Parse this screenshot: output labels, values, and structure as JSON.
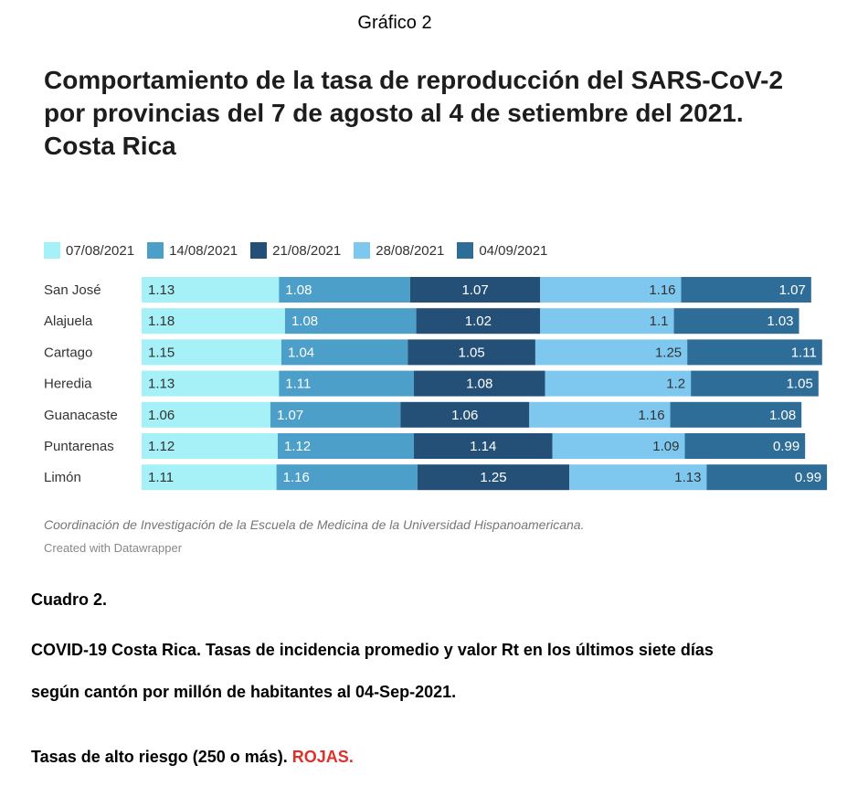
{
  "header": {
    "figure_label": "Gráfico 2",
    "title_line1": "Comportamiento de la tasa de reproducción del SARS-CoV-2",
    "title_line2": "por provincias del 7 de agosto al 4 de setiembre del 2021.",
    "title_line3": "Costa Rica"
  },
  "chart_data": {
    "type": "bar",
    "orientation": "horizontal",
    "stacked": true,
    "categories": [
      "San José",
      "Alajuela",
      "Cartago",
      "Heredia",
      "Guanacaste",
      "Puntarenas",
      "Limón"
    ],
    "series": [
      {
        "name": "07/08/2021",
        "color": "#a6f0f8",
        "label_color": "#333333",
        "values": [
          1.13,
          1.18,
          1.15,
          1.13,
          1.06,
          1.12,
          1.11
        ],
        "labels": [
          "1.13",
          "1.18",
          "1.15",
          "1.13",
          "1.06",
          "1.12",
          "1.11"
        ]
      },
      {
        "name": "14/08/2021",
        "color": "#4c9fc8",
        "label_color": "#ffffff",
        "values": [
          1.08,
          1.08,
          1.04,
          1.11,
          1.07,
          1.12,
          1.16
        ],
        "labels": [
          "1.08",
          "1.08",
          "1.04",
          "1.11",
          "1.07",
          "1.12",
          "1.16"
        ]
      },
      {
        "name": "21/08/2021",
        "color": "#244f76",
        "label_color": "#ffffff",
        "values": [
          1.07,
          1.02,
          1.05,
          1.08,
          1.06,
          1.14,
          1.25
        ],
        "labels": [
          "1.07",
          "1.02",
          "1.05",
          "1.08",
          "1.06",
          "1.14",
          "1.25"
        ]
      },
      {
        "name": "28/08/2021",
        "color": "#7ec8f0",
        "label_color": "#333333",
        "values": [
          1.16,
          1.1,
          1.25,
          1.2,
          1.16,
          1.09,
          1.13
        ],
        "labels": [
          "1.16",
          "1.1",
          "1.25",
          "1.2",
          "1.16",
          "1.09",
          "1.13"
        ]
      },
      {
        "name": "04/09/2021",
        "color": "#2e6d98",
        "label_color": "#ffffff",
        "values": [
          1.07,
          1.03,
          1.11,
          1.05,
          1.08,
          0.99,
          0.99
        ],
        "labels": [
          "1.07",
          "1.03",
          "1.11",
          "1.05",
          "1.08",
          "0.99",
          "0.99"
        ]
      }
    ],
    "legend_position": "top-left",
    "grid": false
  },
  "footer": {
    "source": "Coordinación de Investigación de la Escuela de Medicina de la Universidad Hispanoamericana.",
    "credit": "Created with Datawrapper"
  },
  "cuadro": {
    "label": "Cuadro 2.",
    "desc_line1": "COVID-19 Costa Rica. Tasas de incidencia promedio y valor Rt en los últimos siete días",
    "desc_line2": "según cantón por millón de habitantes al 04-Sep-2021.",
    "risk_text": "Tasas de alto riesgo (250 o más).",
    "risk_highlight": "ROJAS."
  }
}
